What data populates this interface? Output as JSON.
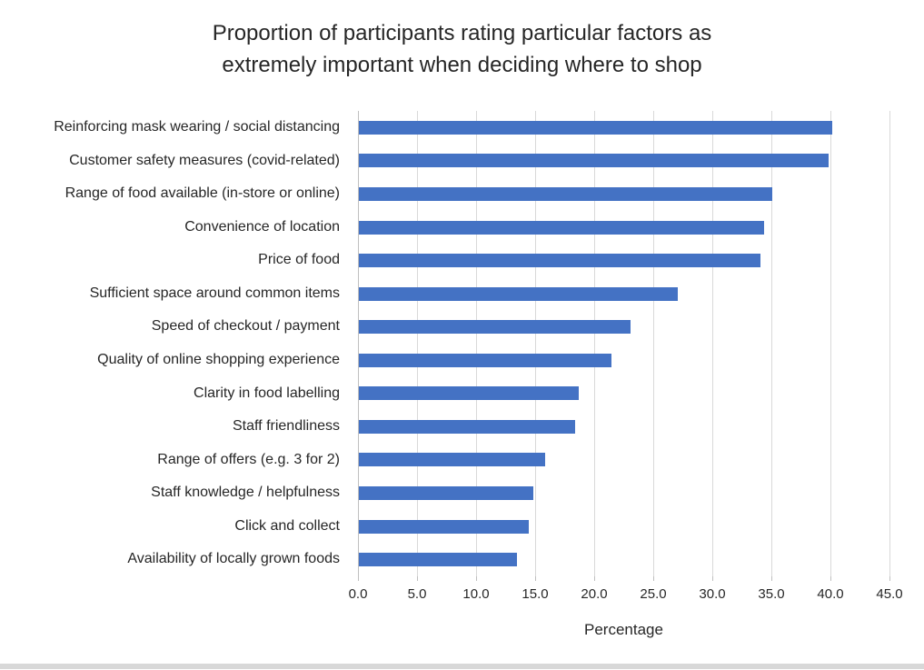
{
  "colors": {
    "bar": "#4472C4",
    "gridline": "#D9D9D9",
    "axis_line": "#BFBFBF",
    "text": "#262626",
    "bottom_strip": "#D8D8D8"
  },
  "chart_data": {
    "type": "bar",
    "orientation": "horizontal",
    "title": "Proportion of participants rating particular factors as extremely important when deciding where to shop",
    "xlabel": "Percentage",
    "ylabel": "",
    "xlim": [
      0,
      45
    ],
    "xticks": [
      0,
      5,
      10,
      15,
      20,
      25,
      30,
      35,
      40,
      45
    ],
    "xtick_labels": [
      "0.0",
      "5.0",
      "10.0",
      "15.0",
      "20.0",
      "25.0",
      "30.0",
      "35.0",
      "40.0",
      "45.0"
    ],
    "grid": "vertical",
    "legend": "none",
    "categories": [
      "Reinforcing mask wearing / social distancing",
      "Customer safety measures (covid-related)",
      "Range of food available (in-store or online)",
      "Convenience of location",
      "Price of food",
      "Sufficient space around common items",
      "Speed of checkout / payment",
      "Quality of online shopping experience",
      "Clarity in food labelling",
      "Staff friendliness",
      "Range of offers (e.g. 3 for 2)",
      "Staff knowledge / helpfulness",
      "Click and collect",
      "Availability of locally grown foods"
    ],
    "values": [
      40.1,
      39.8,
      35.0,
      34.3,
      34.0,
      27.0,
      23.0,
      21.4,
      18.6,
      18.3,
      15.8,
      14.8,
      14.4,
      13.4
    ]
  }
}
